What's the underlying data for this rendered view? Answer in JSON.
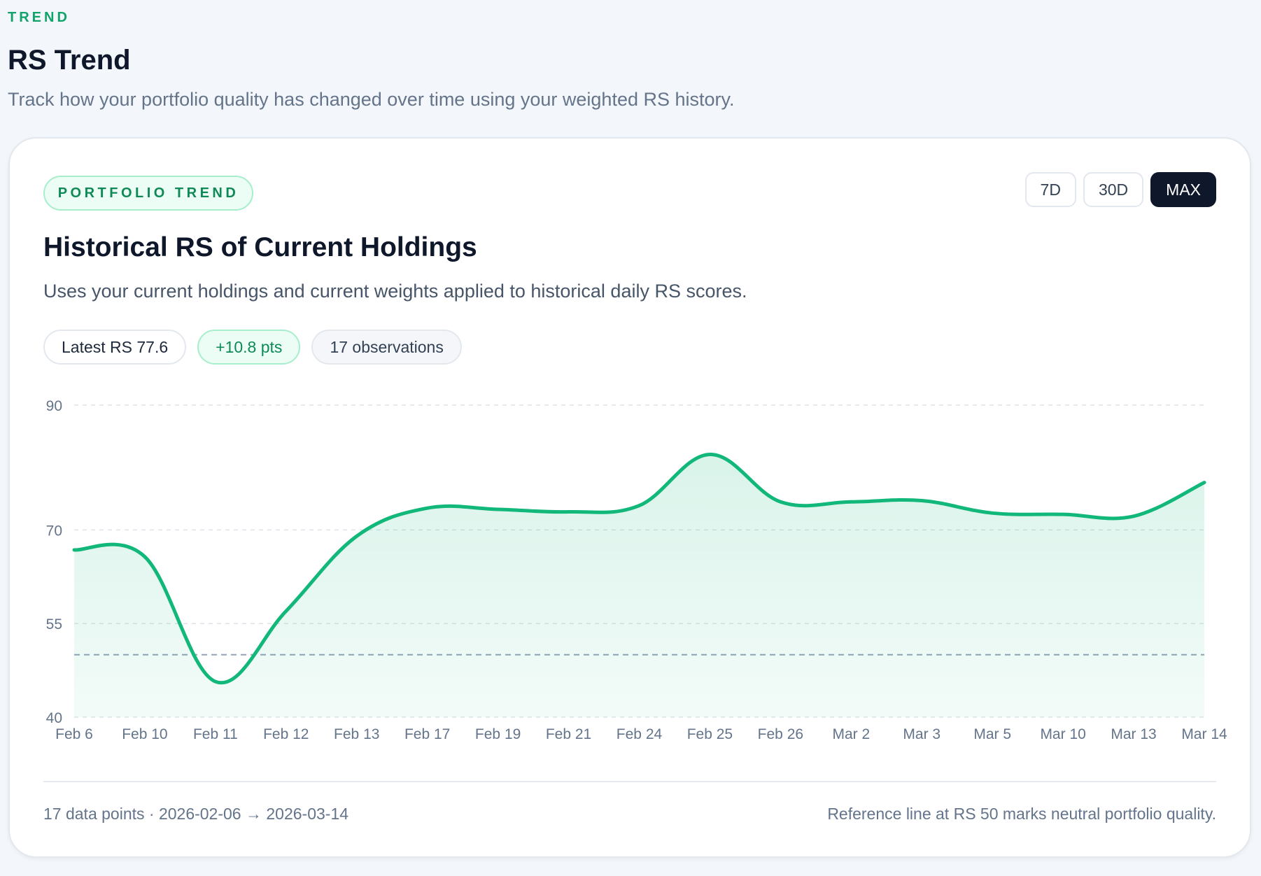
{
  "header": {
    "eyebrow": "TREND",
    "title": "RS Trend",
    "subtitle": "Track how your portfolio quality has changed over time using your weighted RS history."
  },
  "card": {
    "badge": "PORTFOLIO TREND",
    "title": "Historical RS of Current Holdings",
    "subtitle": "Uses your current holdings and current weights applied to historical daily RS scores.",
    "ranges": [
      {
        "label": "7D",
        "active": false
      },
      {
        "label": "30D",
        "active": false
      },
      {
        "label": "MAX",
        "active": true
      }
    ],
    "pills": {
      "latest": "Latest RS 77.6",
      "change": "+10.8 pts",
      "observations": "17 observations"
    },
    "footer": {
      "left": "17 data points · 2026-02-06 → 2026-03-14",
      "right": "Reference line at RS 50 marks neutral portfolio quality."
    }
  },
  "colors": {
    "accent": "#12b77a",
    "reference": "#94a3b8",
    "grid": "#dde3ea"
  },
  "chart_data": {
    "type": "area",
    "categories": [
      "Feb 6",
      "Feb 10",
      "Feb 11",
      "Feb 12",
      "Feb 13",
      "Feb 17",
      "Feb 19",
      "Feb 21",
      "Feb 24",
      "Feb 25",
      "Feb 26",
      "Mar 2",
      "Mar 3",
      "Mar 5",
      "Mar 10",
      "Mar 13",
      "Mar 14"
    ],
    "series": [
      {
        "values": [
          66.8,
          65.7,
          45.7,
          57.0,
          69.0,
          73.5,
          73.3,
          72.9,
          73.9,
          82.1,
          74.5,
          74.5,
          74.7,
          72.7,
          72.5,
          72.2,
          77.6
        ]
      }
    ],
    "yticks": [
      40,
      55,
      70,
      90
    ],
    "ylim": [
      40,
      90
    ],
    "reference_line": 50,
    "grid": true,
    "title": "",
    "xlabel": "",
    "ylabel": ""
  }
}
